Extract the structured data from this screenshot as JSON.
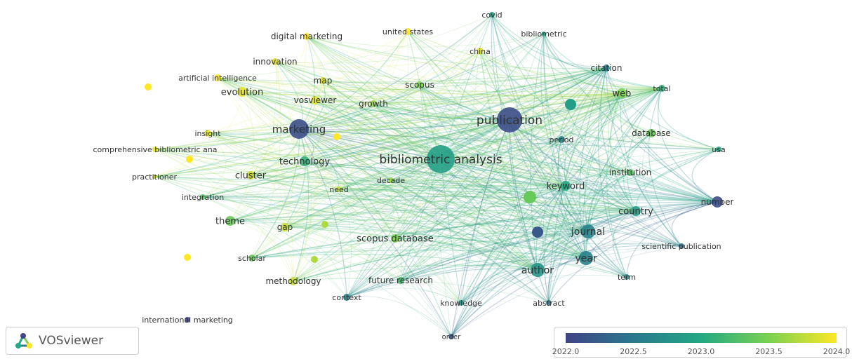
{
  "app": {
    "name": "VOSviewer"
  },
  "legend": {
    "ticks": [
      "2022.0",
      "2022.5",
      "2023.0",
      "2023.5",
      "2024.0"
    ],
    "colors": [
      "#414487",
      "#2a788e",
      "#22a884",
      "#7ad151",
      "#fde725"
    ]
  },
  "nodes": [
    {
      "id": "publication",
      "label": "publication",
      "year": 2022.1
    },
    {
      "id": "bibliometric_analysis",
      "label": "bibliometric analysis",
      "year": 2022.9
    },
    {
      "id": "marketing",
      "label": "marketing",
      "year": 2022.1
    },
    {
      "id": "journal",
      "label": "journal",
      "year": 2022.6
    },
    {
      "id": "author",
      "label": "author",
      "year": 2022.8
    },
    {
      "id": "year",
      "label": "year",
      "year": 2022.6
    },
    {
      "id": "keyword",
      "label": "keyword",
      "year": 2023.0
    },
    {
      "id": "country",
      "label": "country",
      "year": 2022.9
    },
    {
      "id": "number",
      "label": "number",
      "year": 2022.1
    },
    {
      "id": "citation",
      "label": "citation",
      "year": 2022.6
    },
    {
      "id": "total",
      "label": "total",
      "year": 2023.1
    },
    {
      "id": "web",
      "label": "web",
      "year": 2023.5
    },
    {
      "id": "database",
      "label": "database",
      "year": 2023.4
    },
    {
      "id": "period",
      "label": "period",
      "year": 2022.7
    },
    {
      "id": "institution",
      "label": "institution",
      "year": 2023.3
    },
    {
      "id": "usa",
      "label": "usa",
      "year": 2023.0
    },
    {
      "id": "scientific_publication",
      "label": "scientific publication",
      "year": 2022.4
    },
    {
      "id": "term",
      "label": "term",
      "year": 2022.7
    },
    {
      "id": "abstract",
      "label": "abstract",
      "year": 2022.5
    },
    {
      "id": "knowledge",
      "label": "knowledge",
      "year": 2022.8
    },
    {
      "id": "order",
      "label": "order",
      "year": 2022.2
    },
    {
      "id": "future_research",
      "label": "future research",
      "year": 2023.2
    },
    {
      "id": "context",
      "label": "context",
      "year": 2022.6
    },
    {
      "id": "methodology",
      "label": "methodology",
      "year": 2023.8
    },
    {
      "id": "scholar",
      "label": "scholar",
      "year": 2023.4
    },
    {
      "id": "scopus_database",
      "label": "scopus database",
      "year": 2023.5
    },
    {
      "id": "gap",
      "label": "gap",
      "year": 2023.8
    },
    {
      "id": "theme",
      "label": "theme",
      "year": 2023.4
    },
    {
      "id": "integration",
      "label": "integration",
      "year": 2023.3
    },
    {
      "id": "cluster",
      "label": "cluster",
      "year": 2023.8
    },
    {
      "id": "need",
      "label": "need",
      "year": 2023.8
    },
    {
      "id": "decade",
      "label": "decade",
      "year": 2023.6
    },
    {
      "id": "technology",
      "label": "technology",
      "year": 2023.1
    },
    {
      "id": "practitioner",
      "label": "practitioner",
      "year": 2023.9
    },
    {
      "id": "comprehensive",
      "label": "comprehensive bibliometric ana",
      "year": 2023.9
    },
    {
      "id": "insight",
      "label": "insight",
      "year": 2023.9
    },
    {
      "id": "evolution",
      "label": "evolution",
      "year": 2023.9
    },
    {
      "id": "artificial_intelligence",
      "label": "artificial intelligence",
      "year": 2024.0
    },
    {
      "id": "vosviewer",
      "label": "vosviewer",
      "year": 2023.9
    },
    {
      "id": "growth",
      "label": "growth",
      "year": 2023.6
    },
    {
      "id": "map",
      "label": "map",
      "year": 2023.9
    },
    {
      "id": "innovation",
      "label": "innovation",
      "year": 2023.9
    },
    {
      "id": "digital_marketing",
      "label": "digital marketing",
      "year": 2024.0
    },
    {
      "id": "united_states",
      "label": "united states",
      "year": 2024.0
    },
    {
      "id": "china",
      "label": "china",
      "year": 2023.9
    },
    {
      "id": "scopus",
      "label": "scopus",
      "year": 2023.5
    },
    {
      "id": "bibliometric",
      "label": "bibliometric",
      "year": 2022.9
    },
    {
      "id": "covid",
      "label": "covid",
      "year": 2022.9
    },
    {
      "id": "international_marketing",
      "label": "international marketing",
      "year": 2022.0
    }
  ]
}
